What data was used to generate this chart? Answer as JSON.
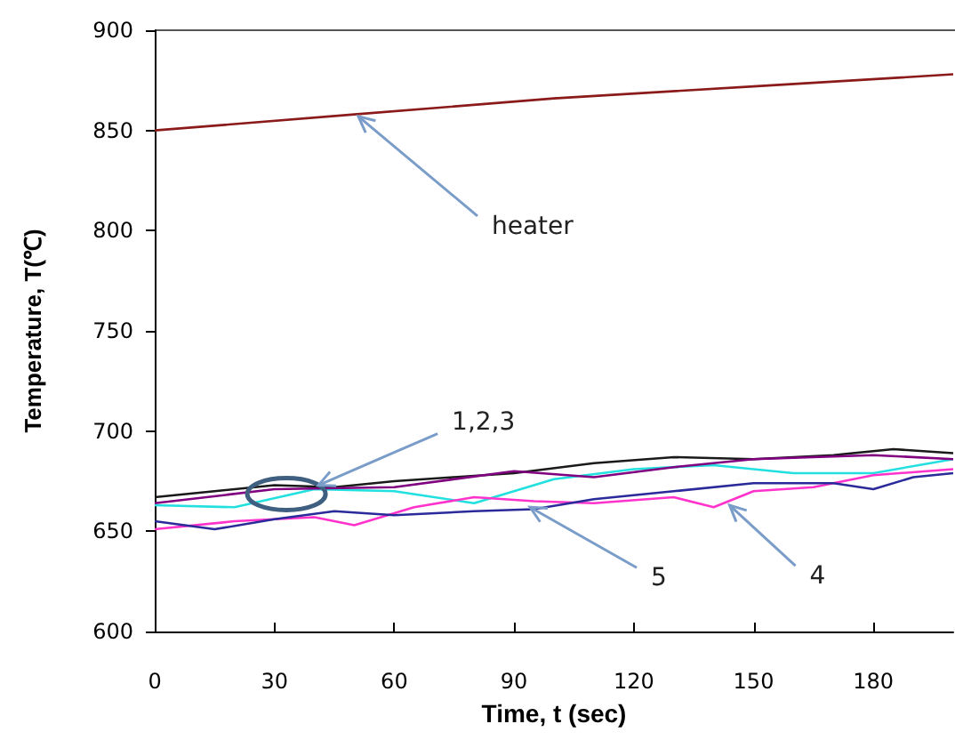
{
  "chart_data": {
    "type": "line",
    "xlabel": "Time, t (sec)",
    "ylabel": "Temperature, T(℃)",
    "xlim": [
      0,
      200
    ],
    "xticks": [
      0,
      30,
      60,
      90,
      120,
      150,
      180
    ],
    "ylim": [
      600,
      900
    ],
    "yticks": [
      600,
      650,
      700,
      750,
      800,
      850,
      900
    ],
    "grid": false,
    "marker": "none",
    "line_style": "solid",
    "series": [
      {
        "color": "#8b1a1a",
        "x": [
          0,
          50,
          100,
          150,
          200
        ],
        "values": [
          850,
          858,
          866,
          872,
          878
        ]
      },
      {
        "color": "#1a1a1a",
        "x": [
          0,
          15,
          30,
          45,
          60,
          75,
          90,
          110,
          130,
          150,
          170,
          185,
          200
        ],
        "values": [
          667,
          670,
          673,
          672,
          675,
          677,
          679,
          684,
          687,
          686,
          688,
          691,
          689
        ]
      },
      {
        "color": "#22e0e0",
        "x": [
          0,
          20,
          40,
          60,
          80,
          100,
          120,
          140,
          160,
          180,
          200
        ],
        "values": [
          663,
          662,
          671,
          670,
          664,
          676,
          681,
          683,
          679,
          679,
          686
        ]
      },
      {
        "color": "#800080",
        "x": [
          0,
          30,
          60,
          90,
          110,
          130,
          150,
          180,
          200
        ],
        "values": [
          664,
          671,
          672,
          680,
          677,
          682,
          686,
          688,
          686
        ]
      },
      {
        "color": "#ff33cc",
        "x": [
          0,
          20,
          40,
          50,
          65,
          80,
          95,
          110,
          130,
          140,
          150,
          165,
          180,
          200
        ],
        "values": [
          651,
          655,
          657,
          653,
          662,
          667,
          665,
          664,
          667,
          662,
          670,
          672,
          678,
          681
        ]
      },
      {
        "color": "#2a2a9a",
        "x": [
          0,
          15,
          30,
          45,
          60,
          80,
          95,
          110,
          130,
          150,
          170,
          180,
          190,
          200
        ],
        "values": [
          655,
          651,
          656,
          660,
          658,
          660,
          661,
          666,
          670,
          674,
          674,
          671,
          677,
          679
        ]
      }
    ],
    "annotations": [
      {
        "text": "heater",
        "x": 51,
        "y": 857
      },
      {
        "text": "1,2,3",
        "x": 41,
        "y": 673
      },
      {
        "text": "5",
        "x": 94,
        "y": 662
      },
      {
        "text": "4",
        "x": 144,
        "y": 663
      }
    ]
  }
}
